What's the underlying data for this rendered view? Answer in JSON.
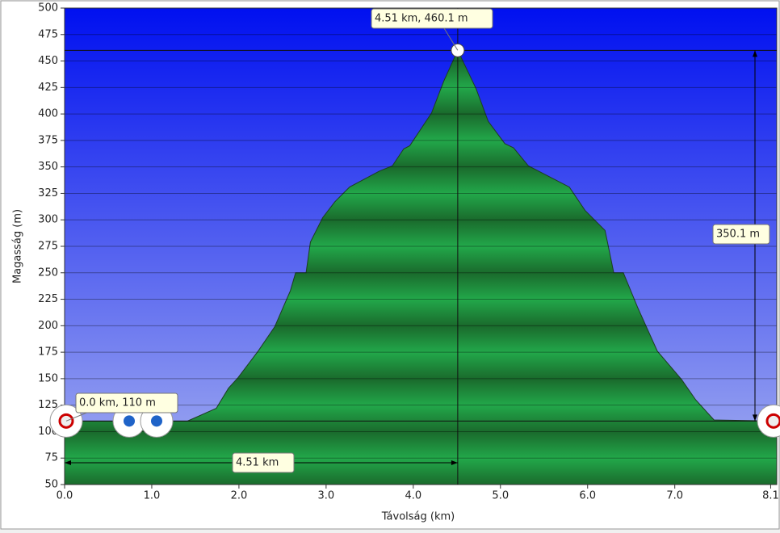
{
  "chart_data": {
    "type": "area",
    "xlabel": "Távolság  (km)",
    "ylabel": "Magasság (m)",
    "x": [
      0,
      1.41,
      1.74,
      1.88,
      1.99,
      2.22,
      2.41,
      2.59,
      2.65,
      2.77,
      2.82,
      2.96,
      3.1,
      3.27,
      3.61,
      3.76,
      3.89,
      3.96,
      4.21,
      4.35,
      4.51,
      4.72,
      4.86,
      5.05,
      5.15,
      5.32,
      5.79,
      5.97,
      6.2,
      6.3,
      6.41,
      6.57,
      6.8,
      7.08,
      7.24,
      7.45,
      8.17
    ],
    "values": [
      110,
      110,
      122,
      141,
      151,
      176,
      199,
      233,
      250,
      250,
      279,
      302,
      317,
      331,
      346,
      351,
      367,
      370,
      401,
      431,
      460.1,
      424,
      393,
      372,
      368,
      351,
      331,
      309,
      290,
      250,
      250,
      218,
      176,
      149,
      130,
      111,
      110
    ],
    "xlim": [
      0,
      8.17
    ],
    "ylim": [
      50,
      500
    ],
    "xticks": [
      {
        "value": 0,
        "label": "0.0"
      },
      {
        "value": 1,
        "label": "1.0"
      },
      {
        "value": 2,
        "label": "2.0"
      },
      {
        "value": 3,
        "label": "3.0"
      },
      {
        "value": 4,
        "label": "4.0"
      },
      {
        "value": 5,
        "label": "5.0"
      },
      {
        "value": 6,
        "label": "6.0"
      },
      {
        "value": 7,
        "label": "7.0"
      },
      8.1
    ],
    "yticks": [
      50,
      75,
      100,
      125,
      150,
      175,
      200,
      225,
      250,
      275,
      300,
      325,
      350,
      375,
      400,
      425,
      450,
      475,
      500
    ],
    "grid": true,
    "points": [
      {
        "x": 4.51,
        "y": 460.1,
        "label": "4.51 km, 460.1 m"
      },
      {
        "x": 0,
        "y": 110,
        "label": "0.0 km, 110 m"
      }
    ],
    "distance_label": "4.51 km",
    "height_label": "350.1 m"
  }
}
